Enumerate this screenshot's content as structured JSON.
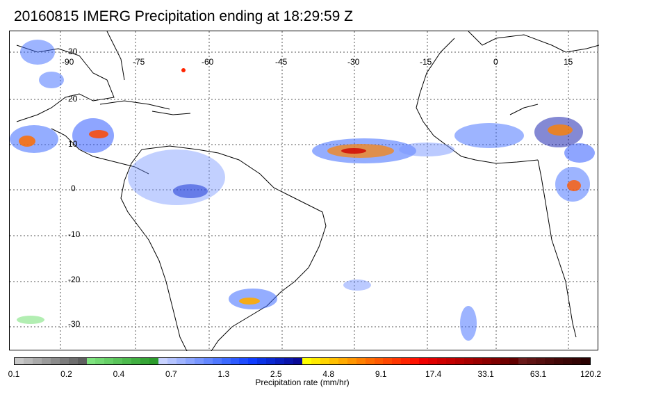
{
  "title": "20160815 IMERG Precipitation ending at 18:29:59 Z",
  "map": {
    "lon_labels": [
      "-90",
      "-75",
      "-60",
      "-45",
      "-30",
      "-15",
      "0",
      "15"
    ],
    "lat_labels": [
      "30",
      "20",
      "10",
      "0",
      "-10",
      "-20",
      "-30"
    ],
    "lon_range": [
      -99,
      20
    ],
    "lat_range": [
      33,
      -35
    ]
  },
  "colorbar": {
    "label": "Precipitation rate (mm/hr)",
    "tick_labels": [
      "0.1",
      "0.2",
      "0.4",
      "0.7",
      "1.3",
      "2.5",
      "4.8",
      "9.1",
      "17.4",
      "33.1",
      "63.1",
      "120.2"
    ],
    "colors": [
      "#c8c8c8",
      "#b9b9b9",
      "#aaaaaa",
      "#9b9b9b",
      "#8c8c8c",
      "#7d7d7d",
      "#6e6e6e",
      "#5f5f5f",
      "#7fe37f",
      "#73d973",
      "#66cf66",
      "#5ac45a",
      "#4dba4d",
      "#41af41",
      "#36a536",
      "#2b9b2b",
      "#c8d2ff",
      "#b4c3ff",
      "#a0b4ff",
      "#8ca5ff",
      "#7896ff",
      "#6487ff",
      "#5078ff",
      "#3c69ff",
      "#2d5aff",
      "#1e4bff",
      "#0f3cff",
      "#0a32e6",
      "#0a28d2",
      "#0a1ebe",
      "#0a14aa",
      "#0a0a96",
      "#ffff00",
      "#ffea00",
      "#ffd500",
      "#ffc000",
      "#ffab00",
      "#ff9600",
      "#ff8100",
      "#ff6c00",
      "#ff5a00",
      "#ff4800",
      "#ff3600",
      "#ff2400",
      "#ff1200",
      "#f00000",
      "#e00000",
      "#d00000",
      "#c40000",
      "#b60000",
      "#a80000",
      "#9a0000",
      "#8c0000",
      "#7e0000",
      "#700000",
      "#620000",
      "#6a1a1a",
      "#601414",
      "#561010",
      "#4c0c0c",
      "#420808",
      "#3a0606",
      "#320404",
      "#2a0202"
    ]
  }
}
